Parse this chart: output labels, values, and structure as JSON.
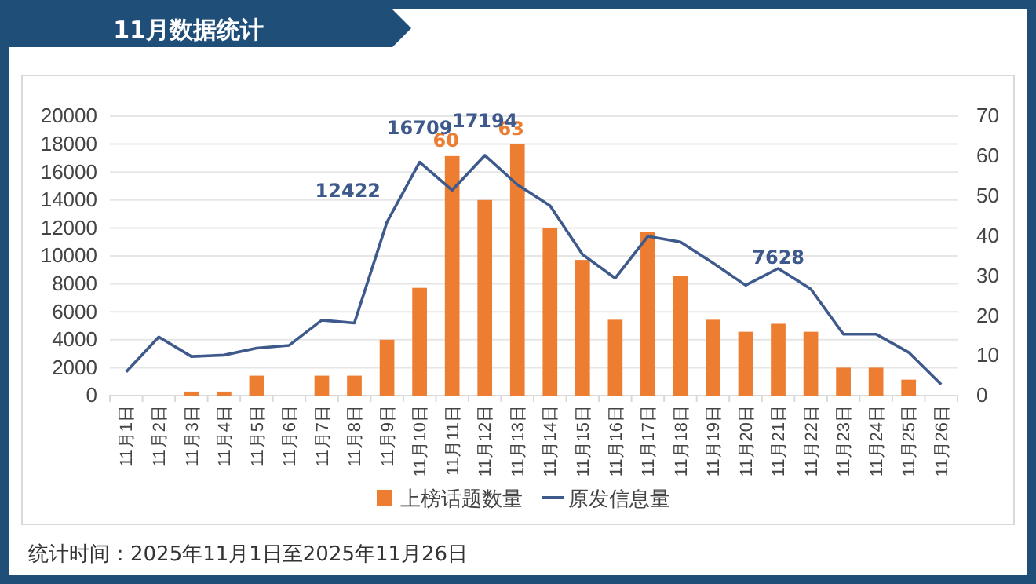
{
  "chart_data": {
    "type": "bar",
    "title": "11月数据统计",
    "categories": [
      "11月1日",
      "11月2日",
      "11月3日",
      "11月4日",
      "11月5日",
      "11月6日",
      "11月7日",
      "11月8日",
      "11月9日",
      "11月10日",
      "11月11日",
      "11月12日",
      "11月13日",
      "11月14日",
      "11月15日",
      "11月16日",
      "11月17日",
      "11月18日",
      "11月19日",
      "11月20日",
      "11月21日",
      "11月22日",
      "11月23日",
      "11月24日",
      "11月25日",
      "11月26日"
    ],
    "series": [
      {
        "name": "上榜话题数量",
        "type": "bar",
        "axis": "y2",
        "color": "#ed7d31",
        "values": [
          0,
          0,
          1,
          1,
          5,
          0,
          5,
          5,
          14,
          27,
          60,
          49,
          63,
          42,
          34,
          19,
          41,
          30,
          19,
          16,
          18,
          16,
          7,
          7,
          4,
          0
        ],
        "value_labels": [
          null,
          null,
          null,
          null,
          null,
          null,
          null,
          null,
          null,
          null,
          "60",
          null,
          "63",
          null,
          null,
          null,
          null,
          null,
          null,
          null,
          null,
          null,
          null,
          null,
          null,
          null
        ]
      },
      {
        "name": "原发信息量",
        "type": "line",
        "color": "#3e5a8c",
        "values": [
          1700,
          4200,
          2800,
          2900,
          3400,
          3600,
          5400,
          5200,
          12422,
          16709,
          14700,
          17194,
          15100,
          13600,
          10100,
          8400,
          11400,
          11000,
          9500,
          7900,
          9100,
          7628,
          4400,
          4400,
          3100,
          800
        ],
        "value_labels": [
          null,
          null,
          null,
          null,
          null,
          null,
          null,
          null,
          "12422",
          "16709",
          null,
          "17194",
          null,
          null,
          null,
          null,
          null,
          null,
          null,
          null,
          null,
          "7628",
          null,
          null,
          null,
          null
        ]
      }
    ],
    "ylim": [
      0,
      20000
    ],
    "yticks": [
      0,
      2000,
      4000,
      6000,
      8000,
      10000,
      12000,
      14000,
      16000,
      18000,
      20000
    ],
    "y2lim": [
      0,
      70
    ],
    "y2ticks": [
      0,
      10,
      20,
      30,
      40,
      50,
      60,
      70
    ],
    "grid": "y",
    "legend": "bottom",
    "annotations": [
      "统计时间：2025年11月1日至2025年11月26日"
    ]
  }
}
